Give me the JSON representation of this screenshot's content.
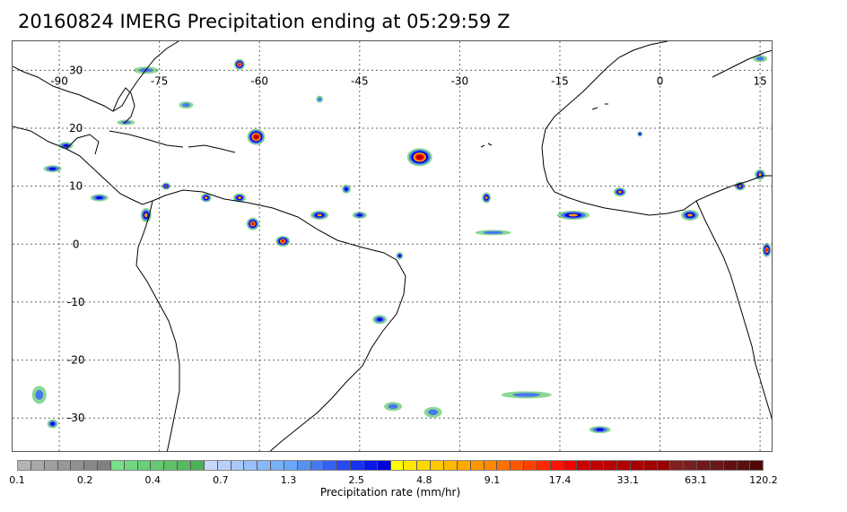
{
  "title": "20160824 IMERG Precipitation ending at 05:29:59 Z",
  "map": {
    "lon_range": [
      -97,
      17
    ],
    "lat_range": [
      -36,
      35
    ],
    "lon_ticks": [
      {
        "lon": -90,
        "label": "-90"
      },
      {
        "lon": -75,
        "label": "-75"
      },
      {
        "lon": -60,
        "label": "-60"
      },
      {
        "lon": -45,
        "label": "-45"
      },
      {
        "lon": -30,
        "label": "-30"
      },
      {
        "lon": -15,
        "label": "-15"
      },
      {
        "lon": 0,
        "label": "0"
      },
      {
        "lon": 15,
        "label": "15"
      }
    ],
    "lat_ticks": [
      {
        "lat": 30,
        "label": "30"
      },
      {
        "lat": 20,
        "label": "20"
      },
      {
        "lat": 10,
        "label": "10"
      },
      {
        "lat": 0,
        "label": "0"
      },
      {
        "lat": -10,
        "label": "-10"
      },
      {
        "lat": -20,
        "label": "-20"
      },
      {
        "lat": -30,
        "label": "-30"
      }
    ],
    "grid": "dotted",
    "coastline_color": "#000000"
  },
  "colorbar": {
    "colors": [
      "#b4b4b4",
      "#a8a8a8",
      "#a0a0a0",
      "#989898",
      "#909090",
      "#888888",
      "#808080",
      "#78e088",
      "#70d880",
      "#68d078",
      "#68c870",
      "#60c068",
      "#58b860",
      "#50b058",
      "#c8d8f8",
      "#b8d0f8",
      "#a8c8f8",
      "#98c0f8",
      "#88b8f8",
      "#78b0f8",
      "#68a8f8",
      "#5890f0",
      "#4878f0",
      "#3860f0",
      "#2848f0",
      "#1830f0",
      "#0818e8",
      "#0000d8",
      "#ffff00",
      "#ffe800",
      "#ffd800",
      "#ffc800",
      "#ffb800",
      "#ffa800",
      "#ff9800",
      "#ff8800",
      "#ff7000",
      "#ff5800",
      "#ff4000",
      "#ff2800",
      "#ff1000",
      "#f00000",
      "#c80000",
      "#c00000",
      "#b80000",
      "#b00000",
      "#a80000",
      "#a00000",
      "#980000",
      "#802020",
      "#782020",
      "#701818",
      "#681818",
      "#601010",
      "#581010",
      "#500808"
    ],
    "tick_labels": [
      "0.1",
      "0.2",
      "0.4",
      "0.7",
      "1.3",
      "2.5",
      "4.8",
      "9.1",
      "17.4",
      "33.1",
      "63.1",
      "120.2"
    ],
    "label": "Precipitation rate (mm/hr)"
  },
  "precip_cells": [
    {
      "lon": -60.5,
      "lat": 18.5,
      "rx": 10,
      "ry": 9,
      "level": 5
    },
    {
      "lon": -36,
      "lat": 15,
      "rx": 14,
      "ry": 10,
      "level": 5
    },
    {
      "lon": -63,
      "lat": 31,
      "rx": 6,
      "ry": 6,
      "level": 4
    },
    {
      "lon": -56.5,
      "lat": 0.5,
      "rx": 8,
      "ry": 6,
      "level": 4
    },
    {
      "lon": -51,
      "lat": 5,
      "rx": 10,
      "ry": 5,
      "level": 3
    },
    {
      "lon": -61,
      "lat": 3.5,
      "rx": 7,
      "ry": 7,
      "level": 4
    },
    {
      "lon": -63,
      "lat": 8,
      "rx": 7,
      "ry": 5,
      "level": 3
    },
    {
      "lon": -68,
      "lat": 8,
      "rx": 6,
      "ry": 5,
      "level": 3
    },
    {
      "lon": -77,
      "lat": 5,
      "rx": 6,
      "ry": 8,
      "level": 3
    },
    {
      "lon": -74,
      "lat": 10,
      "rx": 5,
      "ry": 4,
      "level": 3
    },
    {
      "lon": -26,
      "lat": 8,
      "rx": 5,
      "ry": 6,
      "level": 3
    },
    {
      "lon": -13,
      "lat": 5,
      "rx": 18,
      "ry": 5,
      "level": 3
    },
    {
      "lon": -6,
      "lat": 9,
      "rx": 7,
      "ry": 5,
      "level": 3
    },
    {
      "lon": 4.5,
      "lat": 5,
      "rx": 10,
      "ry": 6,
      "level": 3
    },
    {
      "lon": 12,
      "lat": 10,
      "rx": 6,
      "ry": 5,
      "level": 3
    },
    {
      "lon": 16,
      "lat": -1,
      "rx": 5,
      "ry": 8,
      "level": 4
    },
    {
      "lon": 15,
      "lat": 12,
      "rx": 6,
      "ry": 6,
      "level": 3
    },
    {
      "lon": -84,
      "lat": 8,
      "rx": 10,
      "ry": 4,
      "level": 2
    },
    {
      "lon": -91,
      "lat": 13,
      "rx": 10,
      "ry": 4,
      "level": 2
    },
    {
      "lon": -89,
      "lat": 17,
      "rx": 8,
      "ry": 4,
      "level": 2
    },
    {
      "lon": -47,
      "lat": 9.5,
      "rx": 5,
      "ry": 5,
      "level": 2
    },
    {
      "lon": -45,
      "lat": 5,
      "rx": 8,
      "ry": 4,
      "level": 2
    },
    {
      "lon": -71,
      "lat": 24,
      "rx": 8,
      "ry": 4,
      "level": 1
    },
    {
      "lon": -77,
      "lat": 30,
      "rx": 14,
      "ry": 4,
      "level": 1
    },
    {
      "lon": -42,
      "lat": -13,
      "rx": 8,
      "ry": 5,
      "level": 2
    },
    {
      "lon": -39,
      "lat": -2,
      "rx": 4,
      "ry": 4,
      "level": 2
    },
    {
      "lon": -3,
      "lat": 19,
      "rx": 3,
      "ry": 3,
      "level": 2
    },
    {
      "lon": -91,
      "lat": -31,
      "rx": 6,
      "ry": 5,
      "level": 2
    },
    {
      "lon": -51,
      "lat": 25,
      "rx": 4,
      "ry": 4,
      "level": 1
    },
    {
      "lon": -34,
      "lat": -29,
      "rx": 10,
      "ry": 6,
      "level": 1
    },
    {
      "lon": -20,
      "lat": -26,
      "rx": 28,
      "ry": 4,
      "level": 1
    },
    {
      "lon": -9,
      "lat": -32,
      "rx": 12,
      "ry": 4,
      "level": 2
    },
    {
      "lon": -40,
      "lat": -28,
      "rx": 10,
      "ry": 5,
      "level": 1
    },
    {
      "lon": -93,
      "lat": -26,
      "rx": 8,
      "ry": 10,
      "level": 1
    },
    {
      "lon": -80,
      "lat": 21,
      "rx": 10,
      "ry": 3,
      "level": 1
    },
    {
      "lon": 15,
      "lat": 32,
      "rx": 8,
      "ry": 4,
      "level": 1
    },
    {
      "lon": -25,
      "lat": 2,
      "rx": 20,
      "ry": 3,
      "level": 1
    }
  ]
}
